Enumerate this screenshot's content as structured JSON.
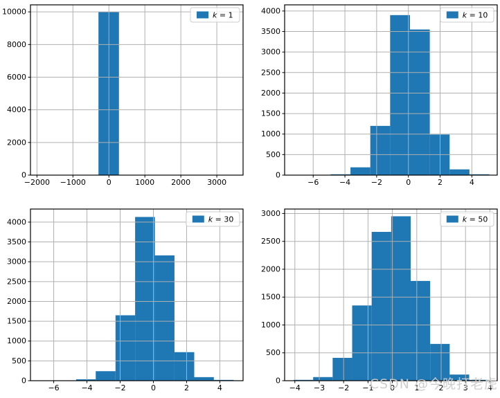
{
  "figure": {
    "background": "#ffffff",
    "description": "2x2 grid of histograms of 10000 standardized sample means for k = 1, 10, 30, 50"
  },
  "watermark": {
    "text": "CSDN @今晚打老虎",
    "color": "#cccccc"
  },
  "style": {
    "bar_color": "#1f77b4",
    "grid_color": "#b0b0b0",
    "spine_color": "#000000",
    "tick_label_color": "#000000",
    "legend_border": "#cccccc",
    "legend_bg": "#ffffff"
  },
  "chart_data": [
    {
      "type": "bar",
      "subtype": "histogram",
      "legend": "k = 1",
      "legend_position": "upper right",
      "grid": true,
      "xlim": [
        -2180,
        3730
      ],
      "ylim": [
        0,
        10430
      ],
      "xticks": [
        -2000,
        -1000,
        0,
        1000,
        2000,
        3000
      ],
      "yticks": [
        0,
        2000,
        4000,
        6000,
        8000,
        10000
      ],
      "bin_edges": [
        -290,
        280
      ],
      "counts": [
        9990
      ]
    },
    {
      "type": "bar",
      "subtype": "histogram",
      "legend": "k = 10",
      "legend_position": "upper right",
      "grid": true,
      "xlim": [
        -7.8,
        5.6
      ],
      "ylim": [
        0,
        4150
      ],
      "xticks": [
        -6,
        -4,
        -2,
        0,
        2,
        4
      ],
      "yticks": [
        0,
        500,
        1000,
        1500,
        2000,
        2500,
        3000,
        3500,
        4000
      ],
      "bin_edges": [
        -4.9,
        -3.65,
        -2.4,
        -1.15,
        0.1,
        1.35,
        2.6,
        3.85,
        5.1
      ],
      "counts": [
        20,
        190,
        1200,
        3900,
        3550,
        990,
        140,
        20
      ]
    },
    {
      "type": "bar",
      "subtype": "histogram",
      "legend": "k = 30",
      "legend_position": "upper right",
      "grid": true,
      "xlim": [
        -7.4,
        5.4
      ],
      "ylim": [
        0,
        4330
      ],
      "xticks": [
        -6,
        -4,
        -2,
        0,
        2,
        4
      ],
      "yticks": [
        0,
        500,
        1000,
        1500,
        2000,
        2500,
        3000,
        3500,
        4000
      ],
      "bin_edges": [
        -4.65,
        -3.47,
        -2.28,
        -1.1,
        0.09,
        1.27,
        2.46,
        3.64,
        4.83
      ],
      "counts": [
        35,
        240,
        1650,
        4130,
        3160,
        720,
        90,
        20
      ]
    },
    {
      "type": "bar",
      "subtype": "histogram",
      "legend": "k = 50",
      "legend_position": "upper right",
      "grid": true,
      "xlim": [
        -4.42,
        4.3
      ],
      "ylim": [
        0,
        3080
      ],
      "xticks": [
        -4,
        -3,
        -2,
        -1,
        0,
        1,
        2,
        3,
        4
      ],
      "yticks": [
        0,
        500,
        1000,
        1500,
        2000,
        2500,
        3000
      ],
      "bin_edges": [
        -4.05,
        -3.25,
        -2.45,
        -1.65,
        -0.85,
        -0.05,
        0.75,
        1.55,
        2.35,
        3.15,
        3.95
      ],
      "counts": [
        15,
        65,
        410,
        1350,
        2670,
        2950,
        1790,
        660,
        110,
        15
      ]
    }
  ]
}
